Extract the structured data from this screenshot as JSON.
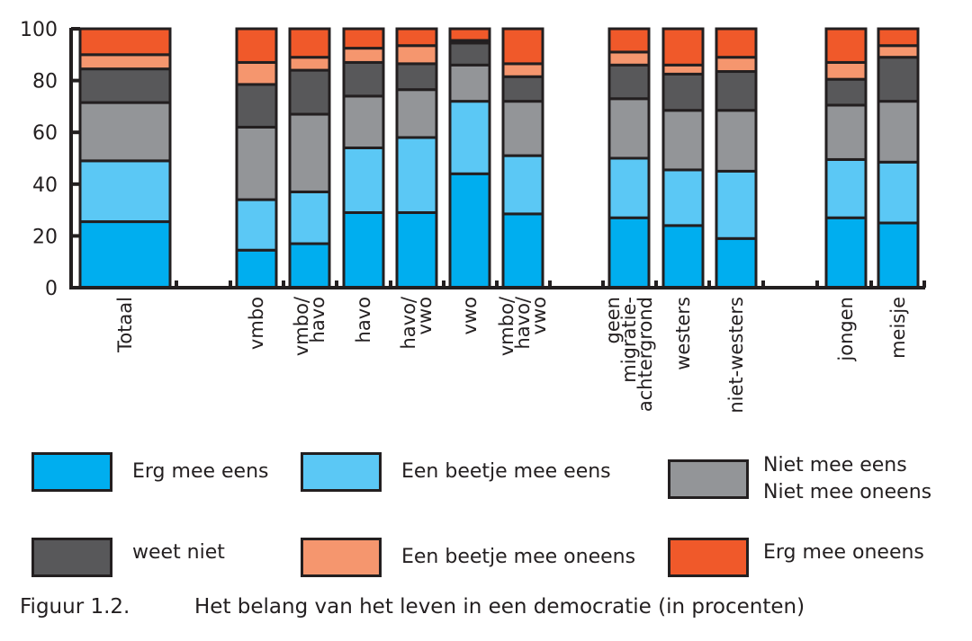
{
  "chart_data": {
    "type": "bar",
    "stacked": true,
    "title": "",
    "xlabel": "",
    "ylabel": "",
    "ylim": [
      0,
      100
    ],
    "yticks": [
      0,
      20,
      40,
      60,
      80,
      100
    ],
    "grid": false,
    "legend_position": "bottom",
    "groups": [
      [
        "Totaal"
      ],
      [
        "vmbo",
        "vmbo/ havo",
        "havo",
        "havo/ vwo",
        "vwo",
        "vmbo/ havo/ vwo"
      ],
      [
        "geen migratie- achtergrond",
        "westers",
        "niet-westers"
      ],
      [
        "jongen",
        "meisje"
      ]
    ],
    "categories": [
      "Totaal",
      "vmbo",
      "vmbo/ havo",
      "havo",
      "havo/ vwo",
      "vwo",
      "vmbo/ havo/ vwo",
      "geen migratie- achtergrond",
      "westers",
      "niet-westers",
      "jongen",
      "meisje"
    ],
    "series": [
      {
        "name": "Erg mee eens",
        "color": "#00AEEF",
        "values": [
          25.5,
          14.5,
          17,
          29,
          29,
          44,
          28.5,
          27,
          24,
          19,
          27,
          25
        ]
      },
      {
        "name": "Een beetje mee eens",
        "color": "#5BC8F5",
        "values": [
          23.5,
          19.5,
          20,
          25,
          29,
          28,
          22.5,
          23,
          21.5,
          26,
          22.5,
          23.5
        ]
      },
      {
        "name": "Niet mee eens\nNiet mee oneens",
        "color": "#939598",
        "values": [
          22.5,
          28,
          30,
          20,
          18.5,
          14,
          21,
          23,
          23,
          23.5,
          21,
          23.5
        ]
      },
      {
        "name": "weet niet",
        "color": "#58585A",
        "values": [
          13,
          16.5,
          17,
          13,
          10,
          8.5,
          9.5,
          13,
          14,
          15,
          10,
          17
        ]
      },
      {
        "name": "Een beetje mee oneens",
        "color": "#F5966E",
        "values": [
          5.5,
          8.5,
          5,
          5.5,
          7,
          1,
          5,
          5,
          3.5,
          5.5,
          6.5,
          4.5
        ]
      },
      {
        "name": "Erg mee oneens",
        "color": "#F0592A",
        "values": [
          10,
          13,
          11,
          7.5,
          6.5,
          4.5,
          13.5,
          9,
          14,
          11,
          13,
          6.5
        ]
      }
    ]
  },
  "legend": [
    {
      "label": "Erg mee eens",
      "color": "#00AEEF"
    },
    {
      "label": "Een beetje mee eens",
      "color": "#5BC8F5"
    },
    {
      "label": "Niet mee eens\nNiet mee oneens",
      "color": "#939598"
    },
    {
      "label": "weet niet",
      "color": "#58585A"
    },
    {
      "label": "Een beetje mee oneens",
      "color": "#F5966E"
    },
    {
      "label": "Erg mee oneens",
      "color": "#F0592A"
    }
  ],
  "caption": {
    "number": "Figuur 1.2.",
    "text": "Het belang van het leven in een democratie (in procenten)"
  }
}
